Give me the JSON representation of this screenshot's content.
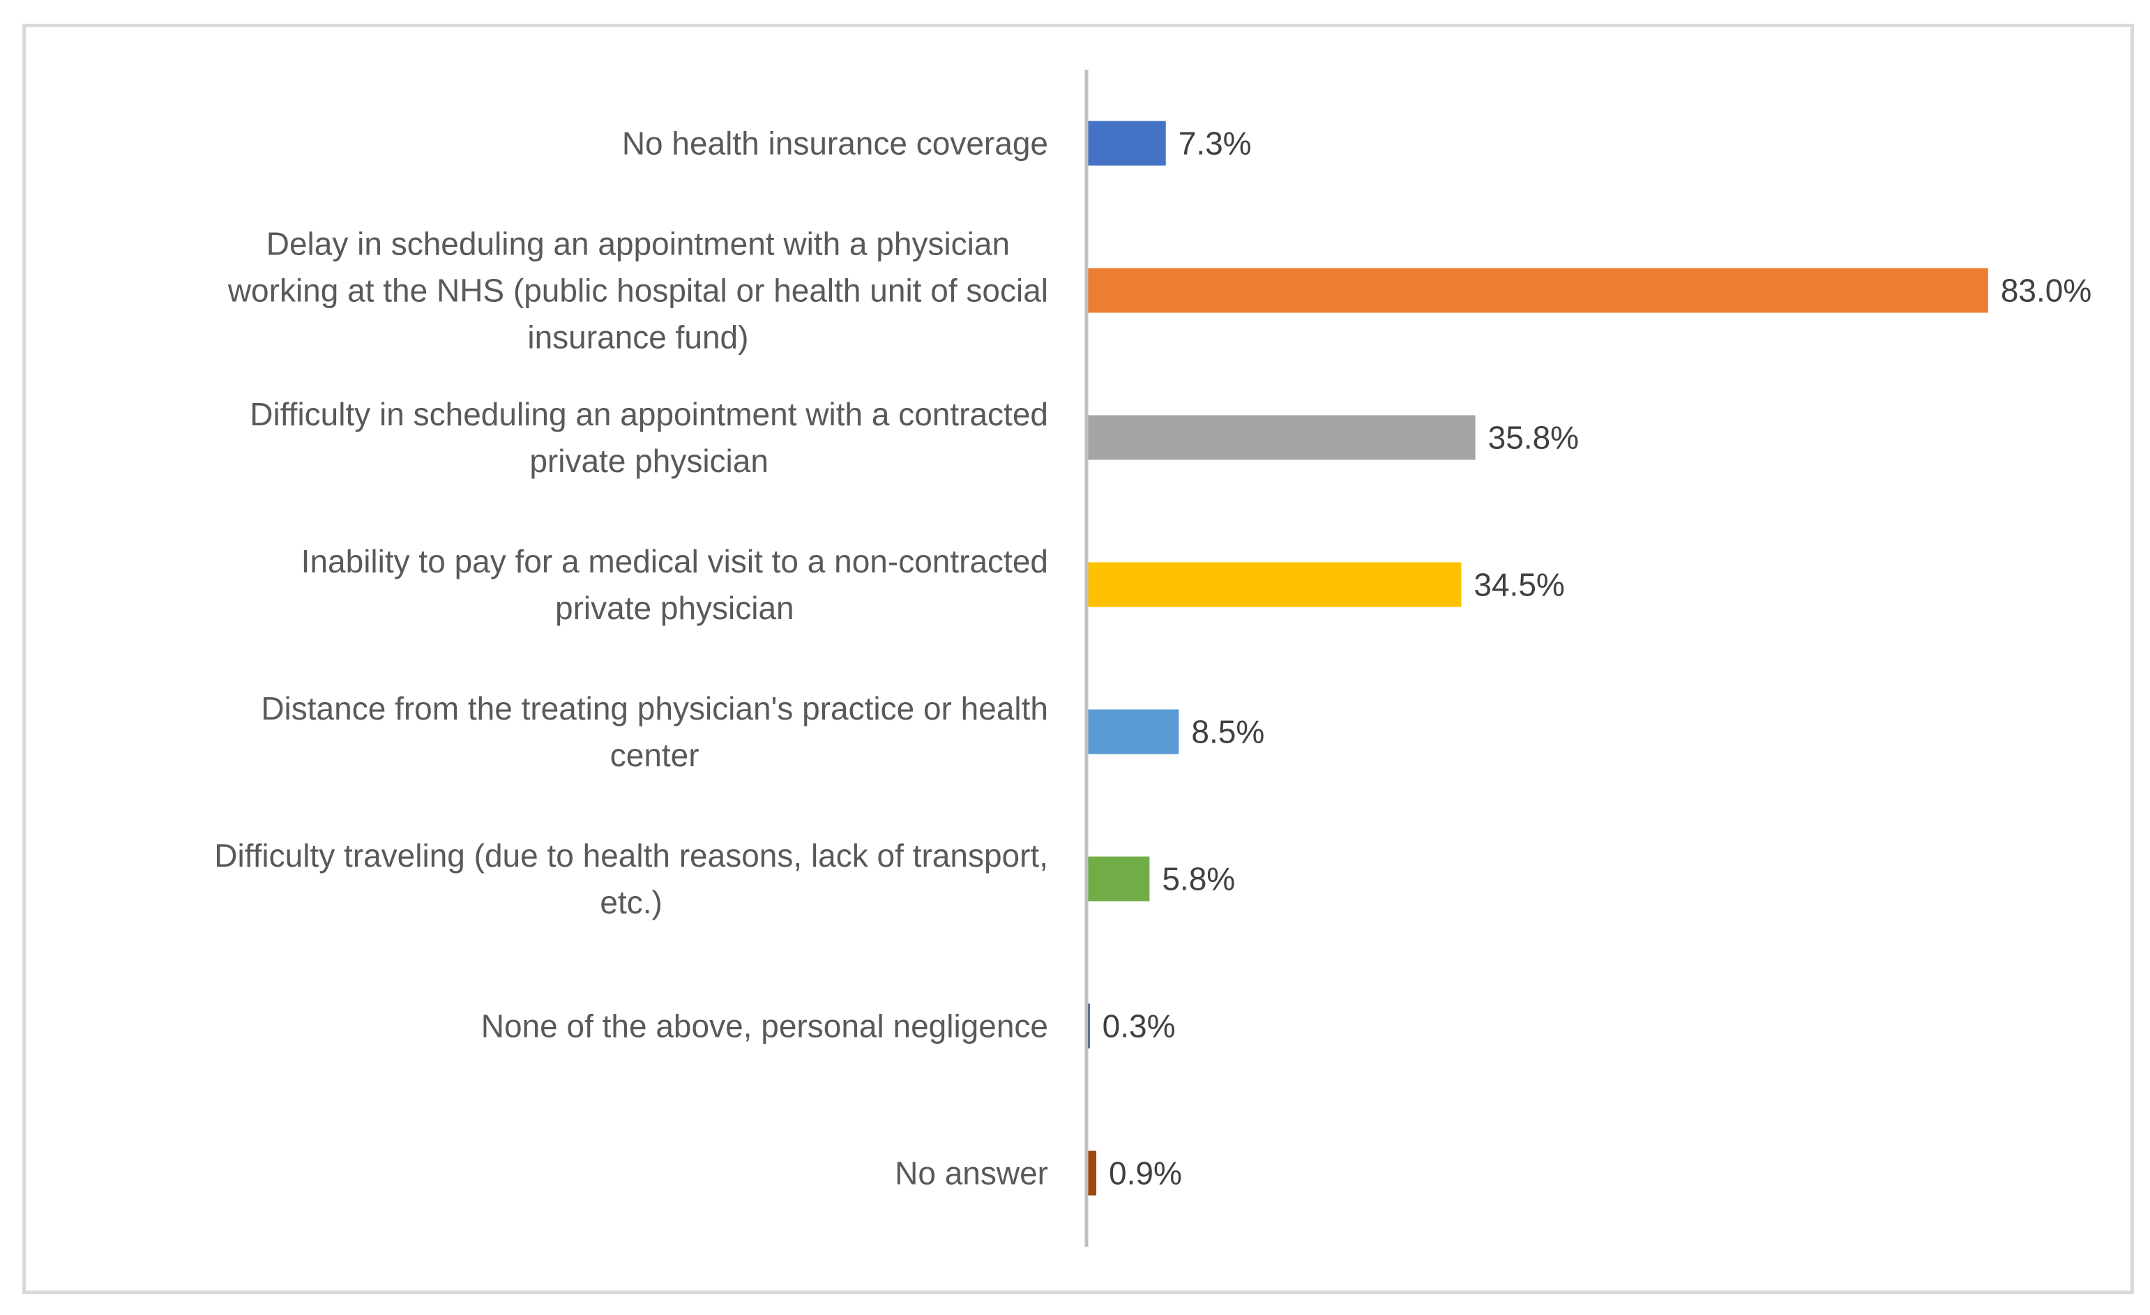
{
  "chart_data": {
    "type": "bar",
    "orientation": "horizontal",
    "title": "",
    "xlabel": "",
    "ylabel": "",
    "xlim": [
      0,
      85
    ],
    "grid": false,
    "legend": "none",
    "categories": [
      "No health insurance coverage",
      "Delay in scheduling an appointment with a physician working at the NHS (public hospital or health unit of social insurance fund)",
      "Difficulty in scheduling an appointment with a contracted private physician",
      "Inability to pay for a medical visit to a non-contracted private physician",
      "Distance from the treating physician's practice or health center",
      "Difficulty traveling (due to health reasons, lack of transport, etc.)",
      "None of the above, personal negligence",
      "No answer"
    ],
    "category_lines": [
      [
        "No health insurance coverage"
      ],
      [
        "Delay in scheduling an appointment with a physician",
        "working at the NHS (public hospital or health unit of social",
        "insurance fund)"
      ],
      [
        "Difficulty in scheduling an appointment with a contracted",
        "private physician"
      ],
      [
        "Inability to pay for a medical visit to a non-contracted",
        "private physician"
      ],
      [
        "Distance from the treating physician's practice or health",
        "center"
      ],
      [
        "Difficulty traveling (due to health reasons, lack of transport,",
        "etc.)"
      ],
      [
        "None of the above, personal negligence"
      ],
      [
        "No answer"
      ]
    ],
    "values": [
      7.3,
      83.0,
      35.8,
      34.5,
      8.5,
      5.8,
      0.3,
      0.9
    ],
    "value_labels": [
      "7.3%",
      "83.0%",
      "35.8%",
      "34.5%",
      "8.5%",
      "5.8%",
      "0.3%",
      "0.9%"
    ],
    "colors": [
      "#4472c4",
      "#ed7d31",
      "#a5a5a5",
      "#ffc000",
      "#5b9bd5",
      "#70ad47",
      "#264478",
      "#9e480e"
    ]
  }
}
